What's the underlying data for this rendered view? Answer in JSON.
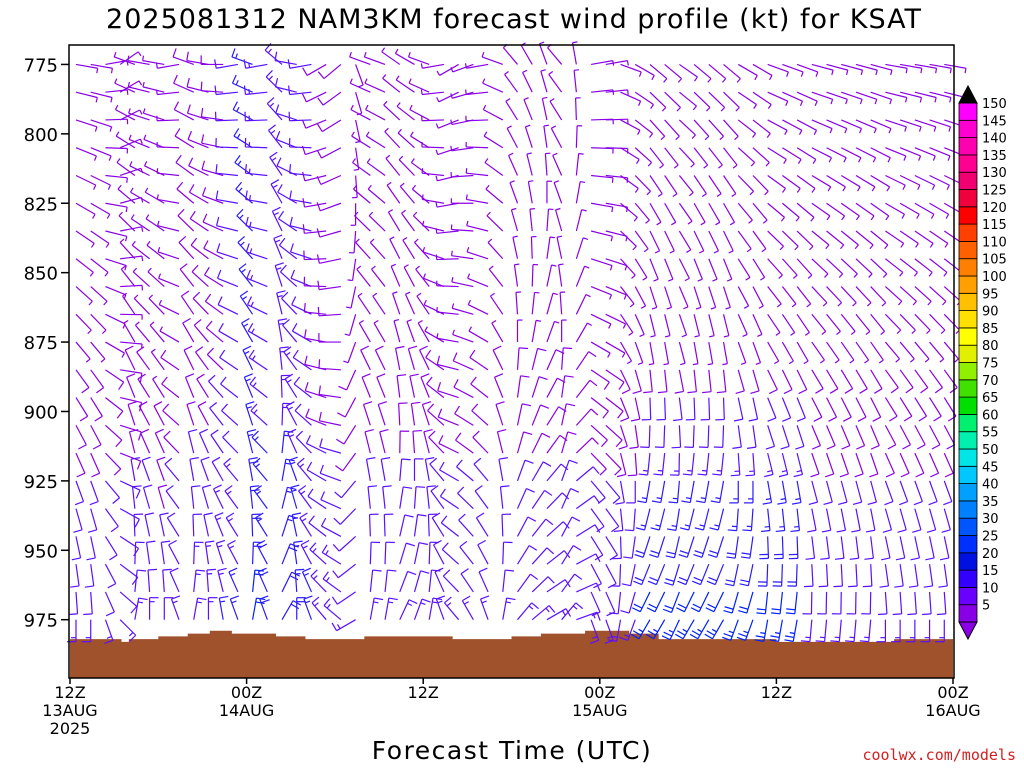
{
  "chart_data": {
    "type": "wind-barb time-height profile",
    "title": "2025081312 NAM3KM forecast wind profile (kt) for KSAT",
    "xlabel": "Forecast Time (UTC)",
    "credit": "coolwx.com/models",
    "y_axis": {
      "label": "",
      "range": [
        996,
        768
      ],
      "ticks": [
        775,
        800,
        825,
        850,
        875,
        900,
        925,
        950,
        975
      ]
    },
    "x_axis": {
      "range_hours": [
        0,
        60
      ],
      "ticks": [
        {
          "hour": 0,
          "line1": "12Z",
          "line2": "13AUG",
          "line3": "2025"
        },
        {
          "hour": 12,
          "line1": "00Z",
          "line2": "14AUG",
          "line3": ""
        },
        {
          "hour": 24,
          "line1": "12Z",
          "line2": "",
          "line3": ""
        },
        {
          "hour": 36,
          "line1": "00Z",
          "line2": "15AUG",
          "line3": ""
        },
        {
          "hour": 48,
          "line1": "12Z",
          "line2": "",
          "line3": ""
        },
        {
          "hour": 60,
          "line1": "00Z",
          "line2": "16AUG",
          "line3": ""
        }
      ]
    },
    "surface_pressure": [
      {
        "hour": 0,
        "p": 982
      },
      {
        "hour": 3,
        "p": 982
      },
      {
        "hour": 3.5,
        "p": 983
      },
      {
        "hour": 4,
        "p": 982
      },
      {
        "hour": 6,
        "p": 981
      },
      {
        "hour": 8,
        "p": 980
      },
      {
        "hour": 9.5,
        "p": 979
      },
      {
        "hour": 11,
        "p": 980
      },
      {
        "hour": 14,
        "p": 981
      },
      {
        "hour": 16,
        "p": 982
      },
      {
        "hour": 20,
        "p": 981
      },
      {
        "hour": 26,
        "p": 982
      },
      {
        "hour": 30,
        "p": 981
      },
      {
        "hour": 32,
        "p": 980
      },
      {
        "hour": 35,
        "p": 979
      },
      {
        "hour": 38,
        "p": 980
      },
      {
        "hour": 40,
        "p": 982
      },
      {
        "hour": 46,
        "p": 982
      },
      {
        "hour": 48,
        "p": 983
      },
      {
        "hour": 54,
        "p": 983
      },
      {
        "hour": 56,
        "p": 982
      },
      {
        "hour": 60,
        "p": 982
      }
    ],
    "colorbar": {
      "labels": [
        5,
        10,
        15,
        20,
        25,
        30,
        35,
        40,
        45,
        50,
        55,
        60,
        65,
        70,
        75,
        80,
        85,
        90,
        95,
        100,
        105,
        110,
        115,
        120,
        125,
        130,
        135,
        140,
        145,
        150
      ],
      "colors": [
        "#8a00e6",
        "#6a00ff",
        "#3300ff",
        "#0010e0",
        "#0030ff",
        "#0055ff",
        "#0080ff",
        "#00a0ff",
        "#00c8ff",
        "#00e6e6",
        "#00f0b0",
        "#00f070",
        "#00e000",
        "#40e000",
        "#90f000",
        "#e0f000",
        "#ffff00",
        "#ffe000",
        "#ffc000",
        "#ffa000",
        "#ff8000",
        "#ff6000",
        "#ff4000",
        "#ff0000",
        "#f0003c",
        "#f00070",
        "#ff0090",
        "#ff00b0",
        "#ff00d0",
        "#ff00ff"
      ],
      "arrow_color_top": "#000000",
      "arrow_color_bottom": "#8a00e6"
    },
    "levels": [
      775,
      785,
      795,
      805,
      815,
      825,
      835,
      845,
      855,
      865,
      875,
      885,
      895,
      905,
      915,
      925,
      935,
      945,
      955,
      965,
      975
    ],
    "barb_rows": [
      {
        "hours": [
          0,
          1,
          2,
          3,
          4,
          5,
          6,
          7,
          8,
          9,
          10,
          11,
          12,
          13,
          14,
          15,
          16,
          17,
          18,
          19,
          20,
          21,
          22,
          23,
          24,
          25,
          26,
          27,
          28,
          29,
          30,
          31,
          32,
          33,
          34,
          35,
          36,
          37,
          38,
          39,
          40,
          41,
          42,
          43,
          44,
          45,
          46,
          47,
          48,
          49,
          50,
          51,
          52,
          53,
          54,
          55,
          56,
          57,
          58,
          59
        ],
        "dir": [
          140,
          140,
          120,
          95,
          330,
          320,
          320,
          300,
          330,
          320,
          310,
          300,
          330,
          300,
          350,
          320,
          300,
          280,
          270,
          200,
          330,
          330,
          345,
          340,
          330,
          300,
          280,
          290,
          300,
          330,
          0,
          10,
          20,
          0,
          30,
          120,
          120,
          150,
          160,
          170,
          170,
          165,
          170,
          170,
          170,
          160,
          160,
          150,
          150,
          150,
          145,
          145,
          145,
          145,
          145,
          140,
          140,
          140,
          140,
          140
        ],
        "spd": [
          7,
          7,
          7,
          7,
          7,
          7,
          6,
          7,
          8,
          8,
          9,
          10,
          15,
          13,
          13,
          12,
          10,
          8,
          8,
          7,
          7,
          7,
          7,
          7,
          7,
          7,
          7,
          7,
          7,
          7,
          7,
          7,
          7,
          7,
          7,
          7,
          7,
          7,
          7,
          7,
          7,
          7,
          7,
          7,
          7,
          7,
          7,
          7,
          7,
          7,
          7,
          7,
          7,
          7,
          7,
          7,
          7,
          7,
          7,
          7
        ]
      }
    ]
  }
}
